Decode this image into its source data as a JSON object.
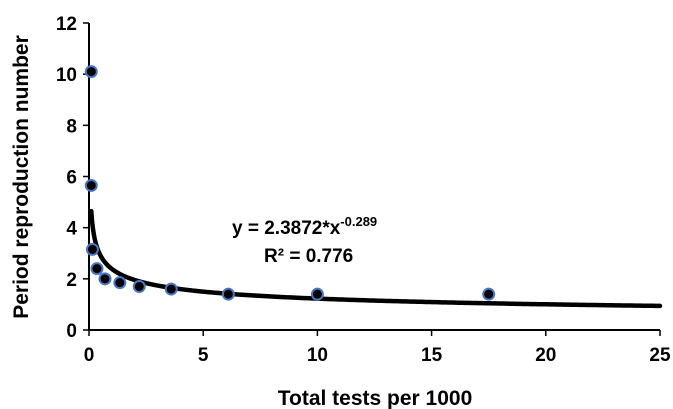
{
  "chart_data": {
    "type": "scatter",
    "xlabel": "Total tests per 1000",
    "ylabel": "Period reproduction number",
    "xlim": [
      0,
      25
    ],
    "ylim": [
      0,
      12
    ],
    "x_ticks": [
      "0",
      "5",
      "10",
      "15",
      "20",
      "25"
    ],
    "y_ticks": [
      "0",
      "2",
      "4",
      "6",
      "8",
      "10",
      "12"
    ],
    "grid": false,
    "legend": "none",
    "points": [
      {
        "x": 0.1,
        "y": 10.1
      },
      {
        "x": 0.1,
        "y": 5.65
      },
      {
        "x": 0.15,
        "y": 3.15
      },
      {
        "x": 0.35,
        "y": 2.4
      },
      {
        "x": 0.7,
        "y": 2.0
      },
      {
        "x": 1.35,
        "y": 1.85
      },
      {
        "x": 2.2,
        "y": 1.7
      },
      {
        "x": 3.6,
        "y": 1.6
      },
      {
        "x": 6.1,
        "y": 1.4
      },
      {
        "x": 10.0,
        "y": 1.4
      },
      {
        "x": 17.5,
        "y": 1.4
      }
    ],
    "trendline": {
      "type": "power",
      "coefficient": 2.3872,
      "exponent": -0.289,
      "x_range": [
        0.1,
        25
      ]
    },
    "equation": {
      "main": "y = 2.3872*x",
      "exponent": "-0.289"
    },
    "r_squared_label": "R² = 0.776",
    "colors": {
      "marker_fill": "#000000",
      "marker_edge": "#4a76c6",
      "trendline": "#000000",
      "axis": "#000000"
    }
  }
}
